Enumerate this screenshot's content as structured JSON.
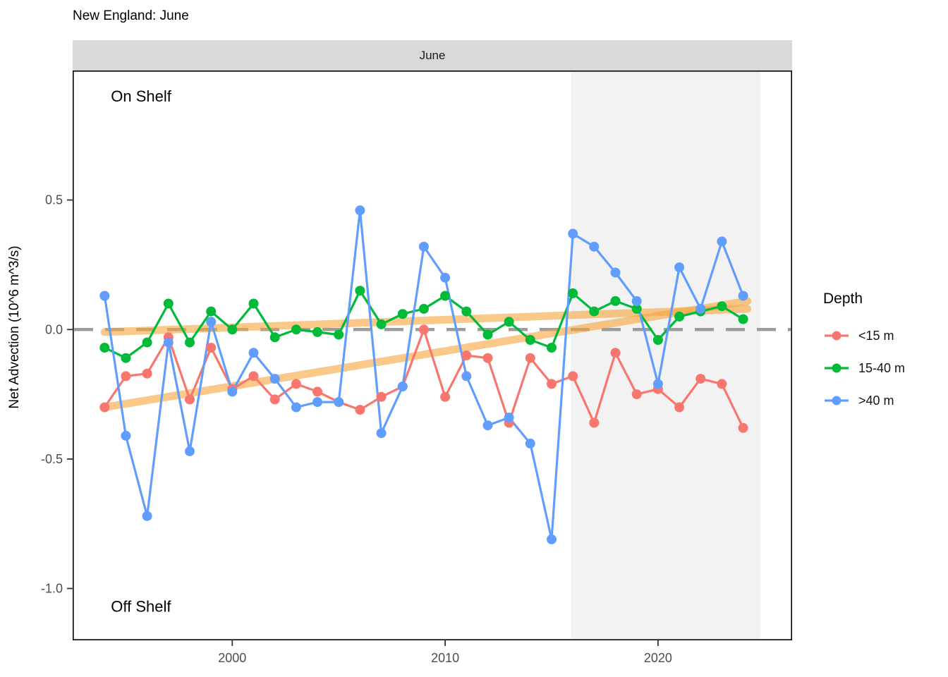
{
  "chart_data": {
    "type": "line",
    "title": "New England: June",
    "facet_label": "June",
    "xlabel": "",
    "ylabel": "Net Advection (10^6 m^3/s)",
    "x": [
      1994,
      1995,
      1996,
      1997,
      1998,
      1999,
      2000,
      2001,
      2002,
      2003,
      2004,
      2005,
      2006,
      2007,
      2008,
      2009,
      2010,
      2011,
      2012,
      2013,
      2014,
      2015,
      2016,
      2017,
      2018,
      2019,
      2020,
      2021,
      2022,
      2023,
      2024
    ],
    "series": [
      {
        "name": "<15 m",
        "key": "lt15m",
        "color": "#F8766D",
        "values": [
          -0.3,
          -0.18,
          -0.17,
          -0.03,
          -0.27,
          -0.07,
          -0.23,
          -0.18,
          -0.27,
          -0.21,
          -0.24,
          -0.28,
          -0.31,
          -0.26,
          -0.22,
          0.0,
          -0.26,
          -0.1,
          -0.11,
          -0.36,
          -0.11,
          -0.21,
          -0.18,
          -0.36,
          -0.09,
          -0.25,
          -0.23,
          -0.3,
          -0.19,
          -0.21,
          -0.38
        ]
      },
      {
        "name": "15-40 m",
        "key": "15-40m",
        "color": "#00BA38",
        "values": [
          -0.07,
          -0.11,
          -0.05,
          0.1,
          -0.05,
          0.07,
          0.0,
          0.1,
          -0.03,
          0.0,
          -0.01,
          -0.02,
          0.15,
          0.02,
          0.06,
          0.08,
          0.13,
          0.07,
          -0.02,
          0.03,
          -0.04,
          -0.07,
          0.14,
          0.07,
          0.11,
          0.08,
          -0.04,
          0.05,
          0.07,
          0.09,
          0.04
        ]
      },
      {
        "name": ">40 m",
        "key": "gt40m",
        "color": "#619CFF",
        "values": [
          0.13,
          -0.41,
          -0.72,
          -0.05,
          -0.47,
          0.03,
          -0.24,
          -0.09,
          -0.19,
          -0.3,
          -0.28,
          -0.28,
          0.46,
          -0.4,
          -0.22,
          0.32,
          0.2,
          -0.18,
          -0.37,
          -0.34,
          -0.44,
          -0.81,
          0.37,
          0.32,
          0.22,
          0.11,
          -0.21,
          0.24,
          0.08,
          0.34,
          0.13
        ]
      }
    ],
    "trend_lines": [
      {
        "key": "15-40m",
        "series": "15-40 m",
        "x": [
          1994,
          2024.2
        ],
        "y": [
          -0.01,
          0.08
        ],
        "color": "#F7A339",
        "opacity": 0.6
      },
      {
        "key": "gt40m",
        "series": ">40 m",
        "x": [
          1994,
          2024.2
        ],
        "y": [
          -0.3,
          0.11
        ],
        "color": "#F7A339",
        "opacity": 0.6
      }
    ],
    "reference_line": {
      "y": 0,
      "style": "dashed",
      "color": "#9C9C9C"
    },
    "shaded_region": {
      "x_start": 2015.9,
      "x_end": 2024.8,
      "color": "#F2F2F2"
    },
    "annotations": [
      {
        "key": "on-shelf",
        "text": "On Shelf",
        "x": 1994.3,
        "y": 0.88
      },
      {
        "key": "off-shelf",
        "text": "Off Shelf",
        "x": 1994.3,
        "y": -1.09
      }
    ],
    "x_axis": {
      "range": [
        1992.5,
        2026.3
      ],
      "ticks": [
        {
          "value": 2000,
          "label": "2000"
        },
        {
          "value": 2010,
          "label": "2010"
        },
        {
          "value": 2020,
          "label": "2020"
        }
      ]
    },
    "y_axis": {
      "range": [
        -1.2,
        1.0
      ],
      "ticks": [
        {
          "value": 0.5,
          "label": "0.5"
        },
        {
          "value": 0.0,
          "label": "0.0"
        },
        {
          "value": -0.5,
          "label": "-0.5"
        },
        {
          "value": -1.0,
          "label": "-1.0"
        }
      ]
    },
    "legend": {
      "title": "Depth",
      "items": [
        {
          "key": "lt15m",
          "label": "<15 m",
          "color": "#F8766D"
        },
        {
          "key": "15-40m",
          "label": "15-40 m",
          "color": "#00BA38"
        },
        {
          "key": "gt40m",
          "label": ">40 m",
          "color": "#619CFF"
        }
      ]
    }
  }
}
